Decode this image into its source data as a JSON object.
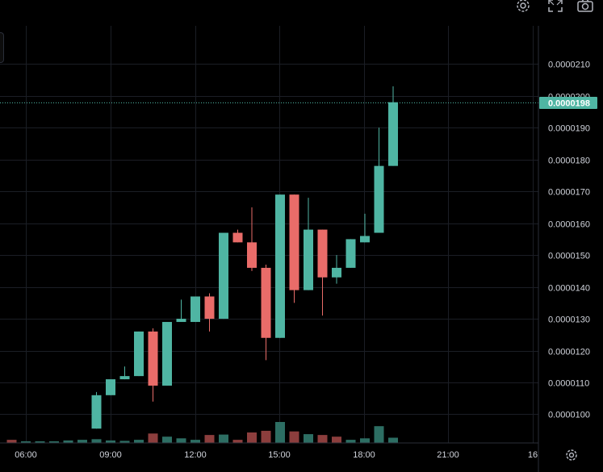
{
  "chart_data": {
    "type": "candlestick",
    "x_ticks": [
      "06:00",
      "09:00",
      "12:00",
      "15:00",
      "18:00",
      "21:00",
      "16"
    ],
    "y_ticks": [
      "0.0000100",
      "0.0000110",
      "0.0000120",
      "0.0000130",
      "0.0000140",
      "0.0000150",
      "0.0000160",
      "0.0000170",
      "0.0000180",
      "0.0000190",
      "0.0000200",
      "0.0000210"
    ],
    "ylim": [
      9.1e-06,
      2.22e-05
    ],
    "last_price": "0.0000198",
    "last_price_value": 1.98e-05,
    "grid": true,
    "interval_minutes": 30,
    "candles": [
      {
        "t": "08:30",
        "o": 9.55e-06,
        "h": 1.07e-05,
        "l": 9.55e-06,
        "c": 1.06e-05
      },
      {
        "t": "09:00",
        "o": 1.06e-05,
        "h": 1.11e-05,
        "l": 1.06e-05,
        "c": 1.11e-05
      },
      {
        "t": "09:30",
        "o": 1.11e-05,
        "h": 1.15e-05,
        "l": 1.11e-05,
        "c": 1.12e-05
      },
      {
        "t": "10:00",
        "o": 1.12e-05,
        "h": 1.26e-05,
        "l": 1.12e-05,
        "c": 1.26e-05
      },
      {
        "t": "10:30",
        "o": 1.26e-05,
        "h": 1.27e-05,
        "l": 1.04e-05,
        "c": 1.09e-05
      },
      {
        "t": "11:00",
        "o": 1.09e-05,
        "h": 1.29e-05,
        "l": 1.09e-05,
        "c": 1.29e-05
      },
      {
        "t": "11:30",
        "o": 1.29e-05,
        "h": 1.36e-05,
        "l": 1.29e-05,
        "c": 1.3e-05
      },
      {
        "t": "12:00",
        "o": 1.29e-05,
        "h": 1.37e-05,
        "l": 1.29e-05,
        "c": 1.37e-05
      },
      {
        "t": "12:30",
        "o": 1.37e-05,
        "h": 1.38e-05,
        "l": 1.26e-05,
        "c": 1.3e-05
      },
      {
        "t": "13:00",
        "o": 1.3e-05,
        "h": 1.57e-05,
        "l": 1.3e-05,
        "c": 1.57e-05
      },
      {
        "t": "13:30",
        "o": 1.57e-05,
        "h": 1.58e-05,
        "l": 1.54e-05,
        "c": 1.54e-05
      },
      {
        "t": "14:00",
        "o": 1.54e-05,
        "h": 1.65e-05,
        "l": 1.45e-05,
        "c": 1.46e-05
      },
      {
        "t": "14:30",
        "o": 1.46e-05,
        "h": 1.47e-05,
        "l": 1.17e-05,
        "c": 1.24e-05
      },
      {
        "t": "15:00",
        "o": 1.24e-05,
        "h": 1.69e-05,
        "l": 1.24e-05,
        "c": 1.69e-05
      },
      {
        "t": "15:30",
        "o": 1.69e-05,
        "h": 1.69e-05,
        "l": 1.35e-05,
        "c": 1.39e-05
      },
      {
        "t": "16:00",
        "o": 1.39e-05,
        "h": 1.68e-05,
        "l": 1.39e-05,
        "c": 1.58e-05
      },
      {
        "t": "16:30",
        "o": 1.58e-05,
        "h": 1.58e-05,
        "l": 1.31e-05,
        "c": 1.43e-05
      },
      {
        "t": "17:00",
        "o": 1.43e-05,
        "h": 1.5e-05,
        "l": 1.41e-05,
        "c": 1.46e-05
      },
      {
        "t": "17:30",
        "o": 1.46e-05,
        "h": 1.55e-05,
        "l": 1.46e-05,
        "c": 1.55e-05
      },
      {
        "t": "18:00",
        "o": 1.54e-05,
        "h": 1.63e-05,
        "l": 1.54e-05,
        "c": 1.56e-05
      },
      {
        "t": "18:30",
        "o": 1.57e-05,
        "h": 1.9e-05,
        "l": 1.57e-05,
        "c": 1.78e-05
      },
      {
        "t": "19:00",
        "o": 1.78e-05,
        "h": 2.03e-05,
        "l": 1.78e-05,
        "c": 1.98e-05
      }
    ],
    "volume": [
      {
        "t": "05:30",
        "v": 0.15,
        "up": false
      },
      {
        "t": "06:00",
        "v": 0.08,
        "up": true
      },
      {
        "t": "06:30",
        "v": 0.08,
        "up": true
      },
      {
        "t": "07:00",
        "v": 0.08,
        "up": true
      },
      {
        "t": "07:30",
        "v": 0.12,
        "up": true
      },
      {
        "t": "08:00",
        "v": 0.15,
        "up": true
      },
      {
        "t": "08:30",
        "v": 0.18,
        "up": true
      },
      {
        "t": "09:00",
        "v": 0.12,
        "up": true
      },
      {
        "t": "09:30",
        "v": 0.1,
        "up": true
      },
      {
        "t": "10:00",
        "v": 0.15,
        "up": true
      },
      {
        "t": "10:30",
        "v": 0.45,
        "up": false
      },
      {
        "t": "11:00",
        "v": 0.3,
        "up": true
      },
      {
        "t": "11:30",
        "v": 0.22,
        "up": true
      },
      {
        "t": "12:00",
        "v": 0.15,
        "up": true
      },
      {
        "t": "12:30",
        "v": 0.38,
        "up": false
      },
      {
        "t": "13:00",
        "v": 0.4,
        "up": true
      },
      {
        "t": "13:30",
        "v": 0.15,
        "up": false
      },
      {
        "t": "14:00",
        "v": 0.5,
        "up": false
      },
      {
        "t": "14:30",
        "v": 0.58,
        "up": false
      },
      {
        "t": "15:00",
        "v": 1.0,
        "up": true
      },
      {
        "t": "15:30",
        "v": 0.55,
        "up": false
      },
      {
        "t": "16:00",
        "v": 0.42,
        "up": true
      },
      {
        "t": "16:30",
        "v": 0.38,
        "up": false
      },
      {
        "t": "17:00",
        "v": 0.3,
        "up": false
      },
      {
        "t": "17:30",
        "v": 0.15,
        "up": true
      },
      {
        "t": "18:00",
        "v": 0.22,
        "up": true
      },
      {
        "t": "18:30",
        "v": 0.8,
        "up": true
      },
      {
        "t": "19:00",
        "v": 0.25,
        "up": true
      }
    ]
  },
  "colors": {
    "background": "#000000",
    "grid": "#1b1e25",
    "up": "#4fb5a3",
    "down": "#e96c69",
    "up_volume": "#2d6e63",
    "down_volume": "#8c3e3d",
    "axis_text": "#d1d4dc",
    "border": "#2a2e39",
    "price_badge": "#4fb5a3"
  },
  "toolbar": {
    "icons": [
      "gear-icon",
      "fullscreen-icon",
      "camera-icon"
    ],
    "bottom_icon": "gear-icon"
  }
}
